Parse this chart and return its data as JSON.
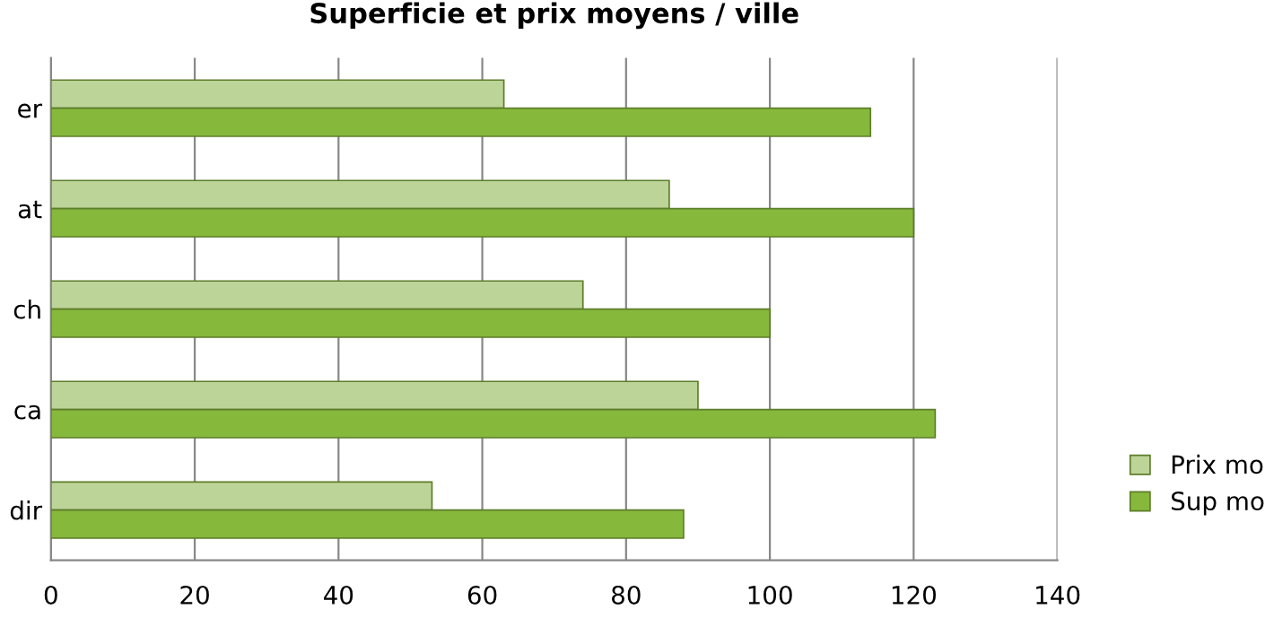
{
  "chart_data": {
    "type": "bar",
    "orientation": "horizontal",
    "title": "Superficie et prix moyens / ville",
    "categories": [
      "er",
      "at",
      "ch",
      "ca",
      "dir"
    ],
    "series": [
      {
        "name": "Prix mo",
        "color": "#bcd498",
        "values": [
          63,
          86,
          74,
          90,
          53
        ]
      },
      {
        "name": "Sup mo",
        "color": "#86b83c",
        "values": [
          114,
          120,
          100,
          123,
          88
        ]
      }
    ],
    "xlim": [
      0,
      140
    ],
    "xticks": [
      0,
      20,
      40,
      60,
      80,
      100,
      120,
      140
    ],
    "grid": "x",
    "legend": "right"
  }
}
